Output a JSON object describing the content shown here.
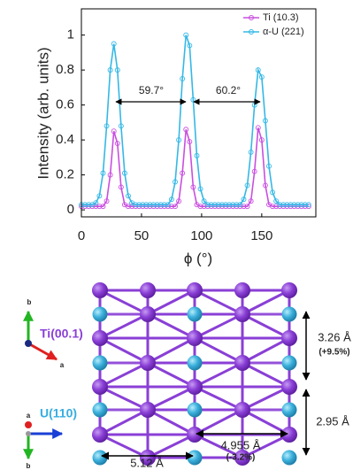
{
  "chart_data": {
    "type": "line",
    "xlabel": "ϕ (°)",
    "ylabel": "Intensity (arb. units)",
    "x": [
      0,
      3,
      6,
      9,
      12,
      15,
      18,
      21,
      24,
      27,
      30,
      33,
      36,
      39,
      42,
      45,
      48,
      51,
      54,
      57,
      60,
      63,
      66,
      69,
      72,
      75,
      78,
      81,
      84,
      87,
      90,
      93,
      96,
      99,
      102,
      105,
      108,
      111,
      114,
      117,
      120,
      123,
      126,
      129,
      132,
      135,
      138,
      141,
      144,
      147,
      150,
      153,
      156,
      159,
      162,
      165,
      168,
      171,
      174,
      177,
      180,
      183,
      186,
      189
    ],
    "series": [
      {
        "name": "Ti (10.3)",
        "color": "#c94fe0",
        "values": [
          0.02,
          0.02,
          0.02,
          0.02,
          0.02,
          0.02,
          0.02,
          0.05,
          0.2,
          0.45,
          0.38,
          0.13,
          0.03,
          0.02,
          0.02,
          0.02,
          0.02,
          0.02,
          0.02,
          0.02,
          0.02,
          0.02,
          0.02,
          0.02,
          0.02,
          0.02,
          0.02,
          0.05,
          0.21,
          0.46,
          0.39,
          0.13,
          0.03,
          0.02,
          0.02,
          0.02,
          0.02,
          0.02,
          0.02,
          0.02,
          0.02,
          0.02,
          0.02,
          0.02,
          0.02,
          0.02,
          0.02,
          0.05,
          0.22,
          0.47,
          0.4,
          0.14,
          0.03,
          0.02,
          0.02,
          0.02,
          0.02,
          0.02,
          0.02,
          0.02,
          0.02,
          0.02,
          0.02,
          0.02
        ]
      },
      {
        "name": "α-U (221)",
        "color": "#35b8e6",
        "values": [
          0.03,
          0.03,
          0.03,
          0.03,
          0.04,
          0.08,
          0.21,
          0.48,
          0.8,
          0.95,
          0.8,
          0.48,
          0.21,
          0.08,
          0.04,
          0.03,
          0.03,
          0.03,
          0.03,
          0.03,
          0.03,
          0.03,
          0.03,
          0.03,
          0.03,
          0.06,
          0.16,
          0.4,
          0.75,
          1.0,
          0.94,
          0.63,
          0.31,
          0.12,
          0.05,
          0.03,
          0.03,
          0.03,
          0.03,
          0.03,
          0.03,
          0.03,
          0.03,
          0.03,
          0.03,
          0.06,
          0.14,
          0.33,
          0.6,
          0.8,
          0.76,
          0.51,
          0.25,
          0.1,
          0.05,
          0.03,
          0.03,
          0.03,
          0.03,
          0.03,
          0.03,
          0.03,
          0.03,
          0.03
        ]
      }
    ],
    "xlim": [
      0,
      195
    ],
    "ylim": [
      -0.04,
      1.15
    ],
    "xticks": [
      0,
      50,
      100,
      150
    ],
    "yticks": [
      0,
      0.2,
      0.4,
      0.6,
      0.8,
      1
    ],
    "legend": "upper right",
    "annotations": [
      "59.7°",
      "60.2°"
    ]
  },
  "diagram": {
    "ti_label": "Ti(00.1)",
    "u_label": "U(110)",
    "axis_labels": [
      "b",
      "a",
      "a",
      "b"
    ],
    "dimensions": [
      "3.26 Å",
      "(+9.5%)",
      "2.95 Å",
      "4.955 Å",
      "(-3.2%)",
      "5.12 Å"
    ]
  }
}
